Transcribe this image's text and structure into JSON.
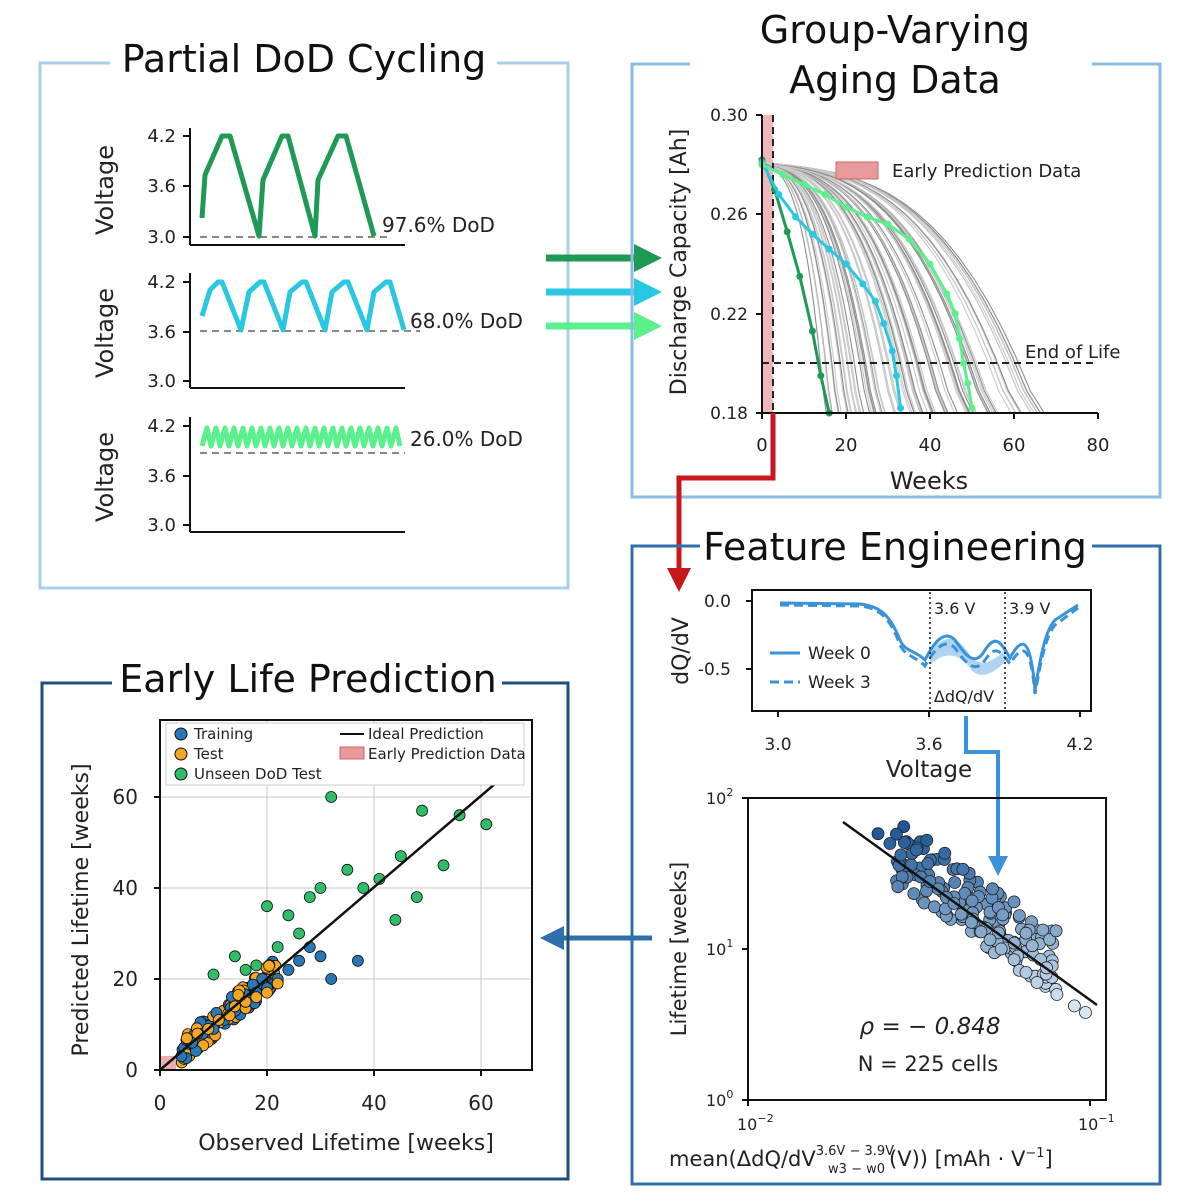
{
  "colors": {
    "green_dark": "#1e9a55",
    "cyan": "#2ac7e2",
    "green_light": "#5af08c",
    "red_arrow": "#c8171d",
    "blue_arrow": "#3a93d8",
    "navy_arrow": "#2f6fae",
    "box_light": "#a9cfe9",
    "box_mid": "#8bbde3",
    "box_dark": "#2f6fa6",
    "box_navy": "#1f4e79",
    "early_fill": "#e89a9a",
    "train": "#2878b5",
    "test": "#f5a623",
    "unseen": "#2fbd68"
  },
  "panels": {
    "dod": {
      "title": "Partial DoD Cycling",
      "ylabel": "Voltage",
      "ticks": [
        "4.2",
        "3.6",
        "3.0"
      ],
      "labels": [
        "97.6% DoD",
        "68.0% DoD",
        "26.0% DoD"
      ],
      "dod_values": [
        97.6,
        68.0,
        26.0
      ],
      "cycles_shown": [
        3,
        5,
        14
      ]
    },
    "aging": {
      "title_line1": "Group-Varying",
      "title_line2": "Aging Data",
      "ylabel": "Discharge Capacity [Ah]",
      "xlabel": "Weeks",
      "yticks": [
        "0.30",
        "0.26",
        "0.22",
        "0.18"
      ],
      "xticks": [
        "0",
        "20",
        "40",
        "60",
        "80"
      ],
      "legend": "Early Prediction Data",
      "eol_label": "End of Life",
      "eol_value": 0.2,
      "early_weeks": 3
    },
    "feature": {
      "title": "Feature Engineering",
      "dq": {
        "ylabel": "dQ/dV",
        "xlabel": "Voltage",
        "yticks": [
          "0.0",
          "-0.5"
        ],
        "xticks": [
          "3.0",
          "3.6",
          "4.2"
        ],
        "v1": "3.6 V",
        "v2": "3.9 V",
        "delta": "ΔdQ/dV",
        "leg1": "Week 0",
        "leg2": "Week 3"
      },
      "scatter": {
        "ylabel": "Lifetime [weeks]",
        "xlabel_main": "mean(ΔdQ/dV",
        "xlabel_sup": "3.6V − 3.9V",
        "xlabel_sub": "w3 − w0",
        "xlabel_end": "(V))  [mAh · V",
        "xlabel_exp": "−1",
        "xlabel_close": "]",
        "yticks_base": [
          "10",
          "10",
          "10"
        ],
        "yticks_exp": [
          "2",
          "1",
          "0"
        ],
        "xticks_base": [
          "10",
          "10"
        ],
        "xticks_exp": [
          "−2",
          "−1"
        ],
        "rho_text": "ρ = − 0.848",
        "n_text": "N = 225 cells",
        "rho": -0.848,
        "n": 225
      }
    },
    "pred": {
      "title": "Early Life Prediction",
      "ylabel": "Predicted Lifetime [weeks]",
      "xlabel": "Observed Lifetime [weeks]",
      "ticks": [
        "0",
        "20",
        "40",
        "60"
      ],
      "legend": [
        "Training",
        "Test",
        "Unseen DoD Test",
        "Ideal Prediction",
        "Early Prediction Data"
      ]
    }
  },
  "chart_data": [
    {
      "type": "line",
      "ylabel": "Discharge Capacity [Ah]",
      "xlabel": "Weeks",
      "xlim": [
        0,
        80
      ],
      "ylim": [
        0.18,
        0.3
      ],
      "series": [
        {
          "x": [
            0,
            3,
            6,
            9,
            12,
            14,
            16
          ],
          "values": [
            0.282,
            0.27,
            0.253,
            0.235,
            0.213,
            0.195,
            0.18
          ]
        },
        {
          "x": [
            0,
            4,
            8,
            12,
            16,
            20,
            24,
            27,
            29,
            31,
            32,
            33
          ],
          "values": [
            0.281,
            0.268,
            0.259,
            0.252,
            0.246,
            0.24,
            0.232,
            0.225,
            0.216,
            0.205,
            0.195,
            0.182
          ]
        },
        {
          "x": [
            0,
            5,
            10,
            15,
            20,
            25,
            30,
            35,
            40,
            44,
            46,
            47,
            48,
            49,
            50
          ],
          "values": [
            0.28,
            0.276,
            0.272,
            0.268,
            0.263,
            0.259,
            0.256,
            0.25,
            0.24,
            0.228,
            0.22,
            0.21,
            0.2,
            0.192,
            0.182
          ]
        }
      ]
    },
    {
      "type": "scatter",
      "xlabel": "Observed Lifetime [weeks]",
      "ylabel": "Predicted Lifetime [weeks]",
      "xlim": [
        0,
        70
      ],
      "ylim": [
        0,
        70
      ],
      "series": [
        {
          "name": "Training",
          "x": [
            4,
            6,
            8,
            10,
            12,
            14,
            16,
            18,
            20,
            22,
            24,
            26,
            28,
            30,
            32,
            37
          ],
          "values": [
            3,
            6,
            8,
            9,
            11,
            13,
            15,
            17,
            18,
            20,
            22,
            24,
            27,
            25,
            20,
            24
          ]
        },
        {
          "name": "Test",
          "x": [
            5,
            7,
            9,
            11,
            13,
            14,
            16,
            18,
            20,
            22
          ],
          "values": [
            7,
            8,
            9,
            11,
            12,
            14,
            15,
            16,
            17,
            19
          ]
        },
        {
          "name": "Unseen DoD Test",
          "x": [
            10,
            14,
            16,
            18,
            20,
            22,
            24,
            26,
            28,
            30,
            32,
            35,
            38,
            41,
            44,
            45,
            48,
            49,
            53,
            56,
            61
          ],
          "values": [
            21,
            25,
            22,
            23,
            36,
            27,
            34,
            30,
            38,
            40,
            60,
            44,
            40,
            42,
            33,
            47,
            38,
            57,
            45,
            56,
            54
          ]
        }
      ]
    },
    {
      "type": "scatter",
      "xlabel": "mean(ΔdQ/dV) [mAh·V⁻¹]",
      "ylabel": "Lifetime [weeks]",
      "xlim": [
        0.01,
        0.1
      ],
      "ylim": [
        1,
        100
      ],
      "series": [
        {
          "x": [
            0.024,
            0.026,
            0.028,
            0.03,
            0.032,
            0.034,
            0.036,
            0.038,
            0.04,
            0.042,
            0.045,
            0.048,
            0.051,
            0.055,
            0.06,
            0.065,
            0.07,
            0.08,
            0.09,
            0.097
          ],
          "values": [
            58,
            50,
            42,
            36,
            30,
            28,
            25,
            22,
            20,
            17,
            15,
            13,
            11.5,
            10,
            8.5,
            7,
            6,
            5,
            4.2,
            3.8
          ]
        }
      ]
    }
  ]
}
